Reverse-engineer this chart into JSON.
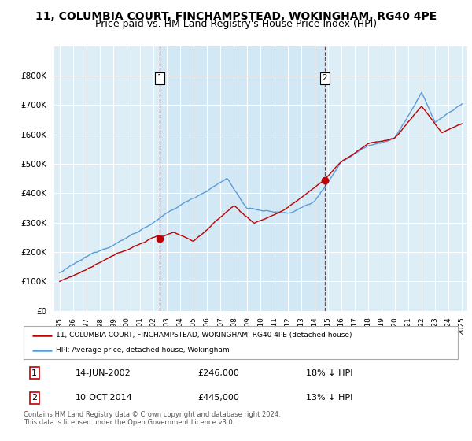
{
  "title": "11, COLUMBIA COURT, FINCHAMPSTEAD, WOKINGHAM, RG40 4PE",
  "subtitle": "Price paid vs. HM Land Registry's House Price Index (HPI)",
  "title_fontsize": 10,
  "subtitle_fontsize": 9,
  "background_color": "#ffffff",
  "plot_bg_color": "#ddeef7",
  "grid_color": "#ffffff",
  "shade_color": "#cce4f5",
  "ylim": [
    0,
    900000
  ],
  "yticks": [
    0,
    100000,
    200000,
    300000,
    400000,
    500000,
    600000,
    700000,
    800000
  ],
  "ytick_labels": [
    "£0",
    "£100K",
    "£200K",
    "£300K",
    "£400K",
    "£500K",
    "£600K",
    "£700K",
    "£800K"
  ],
  "hpi_color": "#5b9bd5",
  "price_color": "#c00000",
  "marker_color": "#c00000",
  "vline_color": "#c00000",
  "transaction1_x": 2002.45,
  "transaction1_y": 246000,
  "transaction2_x": 2014.78,
  "transaction2_y": 445000,
  "legend_price_label": "11, COLUMBIA COURT, FINCHAMPSTEAD, WOKINGHAM, RG40 4PE (detached house)",
  "legend_hpi_label": "HPI: Average price, detached house, Wokingham",
  "annotation1_date": "14-JUN-2002",
  "annotation1_price": "£246,000",
  "annotation1_hpi": "18% ↓ HPI",
  "annotation2_date": "10-OCT-2014",
  "annotation2_price": "£445,000",
  "annotation2_hpi": "13% ↓ HPI",
  "footnote": "Contains HM Land Registry data © Crown copyright and database right 2024.\nThis data is licensed under the Open Government Licence v3.0.",
  "xlim_start": 1994.6,
  "xlim_end": 2025.4
}
